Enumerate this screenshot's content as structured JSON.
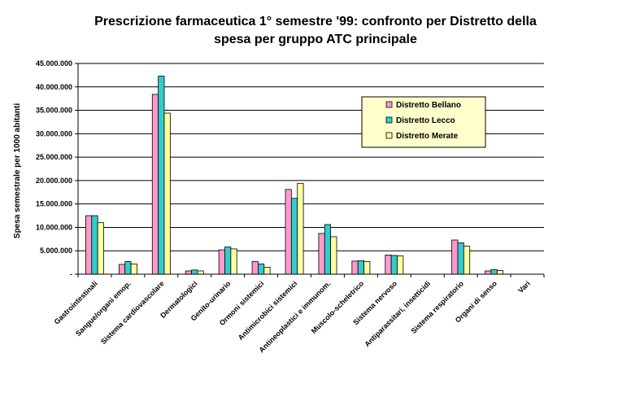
{
  "chart_data": {
    "type": "bar",
    "title_line1": "Prescrizione farmaceutica 1° semestre '99: confronto per Distretto della",
    "title_line2": "spesa per gruppo ATC principale",
    "xlabel": "",
    "ylabel": "Spesa semestrale per 1000 abitanti",
    "ylim": [
      0,
      45000000
    ],
    "yticks": [
      "-",
      "5.000.000",
      "10.000.000",
      "15.000.000",
      "20.000.000",
      "25.000.000",
      "30.000.000",
      "35.000.000",
      "40.000.000",
      "45.000.000"
    ],
    "grid": true,
    "legend_position": "top-right",
    "categories": [
      "Gastrointestinali",
      "Sangue/organi emop.",
      "Sistema cardiovascolare",
      "Dermatologici",
      "Genito-urinario",
      "Ormoni sistemici",
      "Antimicrobici sistemici",
      "Antineoplastici e immunom.",
      "Muscolo-scheletrico",
      "Sistema nervoso",
      "Antiparassitari, insetticidi",
      "Sistema respiratorio",
      "Organi di senso",
      "Vari"
    ],
    "series": [
      {
        "name": "Distretto Bellano",
        "color": "#ff99cc",
        "values": [
          12500000,
          2100000,
          38400000,
          700000,
          5200000,
          2700000,
          18100000,
          8700000,
          2800000,
          4100000,
          0,
          7300000,
          700000,
          0
        ]
      },
      {
        "name": "Distretto Lecco",
        "color": "#33cccc",
        "values": [
          12500000,
          2700000,
          42300000,
          900000,
          5800000,
          2200000,
          16200000,
          10600000,
          2900000,
          4000000,
          0,
          6700000,
          1000000,
          0
        ]
      },
      {
        "name": "Distretto Merate",
        "color": "#ffffa0",
        "values": [
          11000000,
          2200000,
          34400000,
          700000,
          5400000,
          1500000,
          19400000,
          8000000,
          2700000,
          3900000,
          0,
          6000000,
          800000,
          0
        ]
      }
    ]
  }
}
